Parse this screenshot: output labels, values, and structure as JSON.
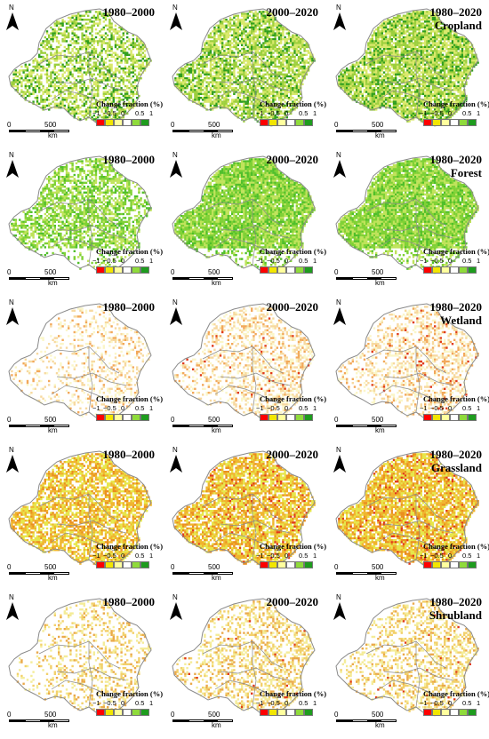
{
  "periods": [
    "1980–2000",
    "2000–2020",
    "1980–2020"
  ],
  "rows": [
    {
      "class": "Cropland",
      "palette": [
        "#d9e86a",
        "#9ccf3c",
        "#2f9e1e"
      ],
      "density": [
        0.55,
        0.75,
        0.85
      ],
      "red": [
        0.0,
        0.0,
        0.0
      ]
    },
    {
      "class": "Forest",
      "palette": [
        "#bfe35a",
        "#7fd135",
        "#4fbf2a"
      ],
      "density": [
        0.6,
        0.92,
        0.92
      ],
      "red": [
        0.0,
        0.0,
        0.0
      ]
    },
    {
      "class": "Wetland",
      "palette": [
        "#fbf6c8",
        "#f7d9a0",
        "#f2a85a"
      ],
      "density": [
        0.25,
        0.45,
        0.45
      ],
      "red": [
        0.0,
        0.04,
        0.05
      ]
    },
    {
      "class": "Grassland",
      "palette": [
        "#e7e64a",
        "#f0b52d",
        "#ea8f1e"
      ],
      "density": [
        0.7,
        0.75,
        0.8
      ],
      "red": [
        0.0,
        0.05,
        0.07
      ]
    },
    {
      "class": "Shrubland",
      "palette": [
        "#f4ec98",
        "#f2d06a",
        "#eaa84a"
      ],
      "density": [
        0.3,
        0.45,
        0.45
      ],
      "red": [
        0.0,
        0.02,
        0.03
      ]
    }
  ],
  "legend": {
    "title": "Change fraction (%)",
    "ticks": [
      "−1",
      "−0.5",
      "0",
      "0.5",
      "1"
    ],
    "colors": [
      "#ff0000",
      "#f2e600",
      "#ffff9e",
      "#ffffff",
      "#8fdb3b",
      "#1e9c1e"
    ]
  },
  "north_label": "N",
  "scalebar": {
    "left": "0",
    "right": "500",
    "unit": "km"
  }
}
